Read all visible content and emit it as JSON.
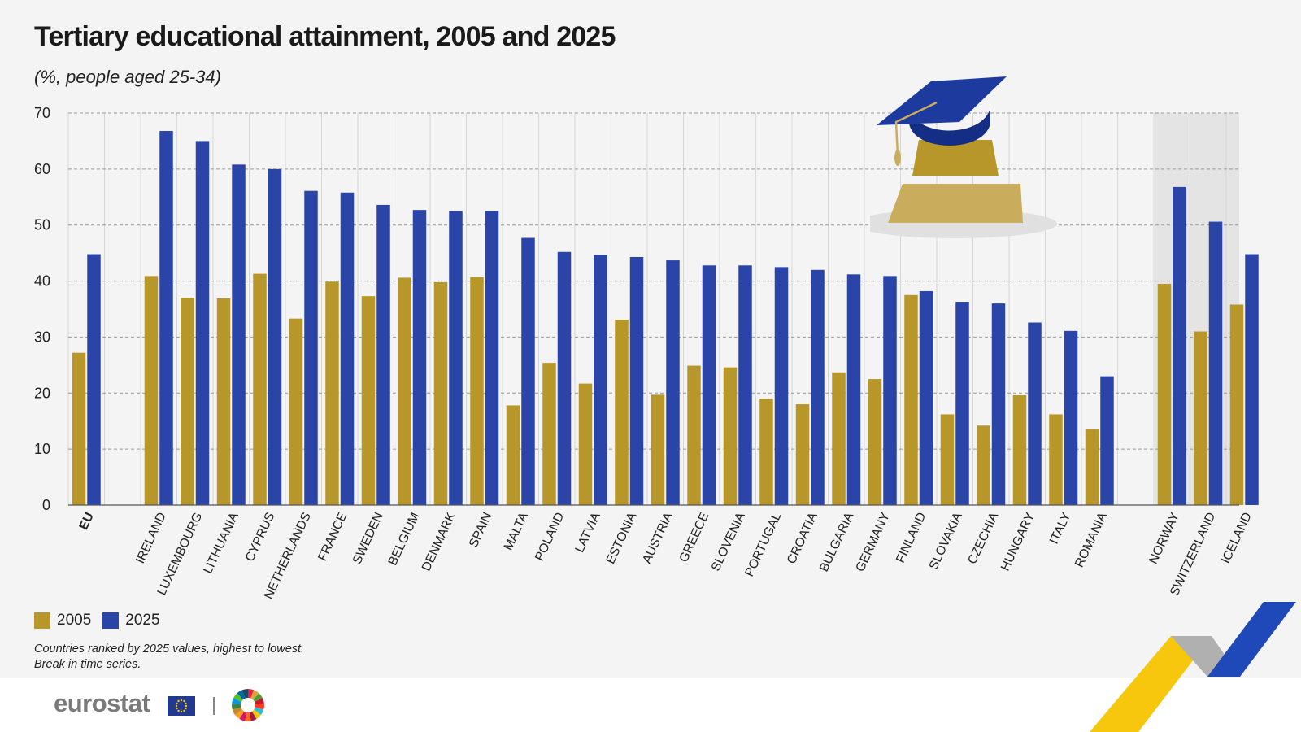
{
  "title": "Tertiary educational attainment, 2005 and 2025",
  "subtitle": "(%, people aged 25-34)",
  "legend": {
    "label_2005": "2005",
    "label_2025": "2025"
  },
  "notes": {
    "line1": "Countries ranked by 2025 values, highest to lowest.",
    "line2": "Break in time series."
  },
  "footer": {
    "logo_text": "eurostat"
  },
  "colors": {
    "series_2005": "#b8972a",
    "series_2025": "#2a44a8",
    "background": "#f4f4f4",
    "shade": "#e4e4e4"
  },
  "icons": [
    "graduation-cap-icon",
    "eu-flag-icon",
    "sdg-wheel-icon"
  ],
  "chart_data": {
    "type": "bar",
    "title": "Tertiary educational attainment, 2005 and 2025",
    "subtitle": "(%, people aged 25-34)",
    "ylim": [
      0,
      70
    ],
    "yticks": [
      0,
      10,
      20,
      30,
      40,
      50,
      60,
      70
    ],
    "grid": true,
    "legend_position": "bottom-left",
    "categories": [
      "EU",
      "IRELAND",
      "LUXEMBOURG",
      "LITHUANIA",
      "CYPRUS",
      "NETHERLANDS",
      "FRANCE",
      "SWEDEN",
      "BELGIUM",
      "DENMARK",
      "SPAIN",
      "MALTA",
      "POLAND",
      "LATVIA",
      "ESTONIA",
      "AUSTRIA",
      "GREECE",
      "SLOVENIA",
      "PORTUGAL",
      "CROATIA",
      "BULGARIA",
      "GERMANY",
      "FINLAND",
      "SLOVAKIA",
      "CZECHIA",
      "HUNGARY",
      "ITALY",
      "ROMANIA",
      "NORWAY",
      "SWITZERLAND",
      "ICELAND"
    ],
    "series": [
      {
        "name": "2005",
        "values": [
          27.2,
          40.9,
          37.0,
          36.9,
          41.3,
          33.3,
          39.9,
          37.3,
          40.6,
          39.8,
          40.7,
          17.8,
          25.4,
          21.7,
          33.1,
          19.7,
          24.9,
          24.6,
          19.0,
          18.0,
          23.7,
          22.5,
          37.5,
          16.2,
          14.2,
          19.6,
          16.2,
          13.5,
          39.5,
          31.0,
          35.8
        ]
      },
      {
        "name": "2025",
        "values": [
          44.8,
          66.8,
          65.0,
          60.8,
          60.0,
          56.1,
          55.8,
          53.6,
          52.7,
          52.5,
          52.5,
          47.7,
          45.2,
          44.7,
          44.3,
          43.7,
          42.8,
          42.8,
          42.5,
          42.0,
          41.2,
          40.9,
          38.2,
          36.3,
          36.0,
          32.6,
          31.1,
          23.0,
          56.8,
          50.6,
          44.8
        ]
      }
    ]
  }
}
